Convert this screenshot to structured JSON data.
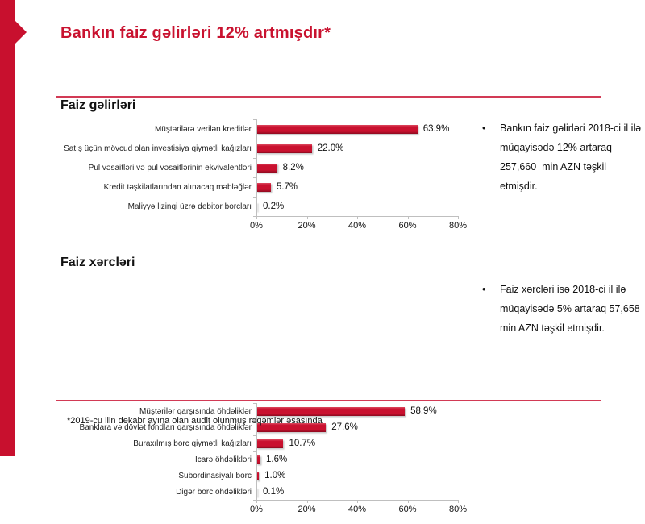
{
  "colors": {
    "accent": "#c8102e",
    "title": "#c9122f",
    "rule": "#d23a55",
    "axis": "#bfbfbf",
    "bar": "#c9112f"
  },
  "title": "Bankın faiz gəlirləri 12% artmışdır*",
  "bullet_char": "•",
  "chart_data": [
    {
      "type": "bar",
      "orientation": "horizontal",
      "title": "Faiz gəlirləri",
      "categories": [
        "Müştərilərə verilən kreditlər",
        "Satış üçün mövcud olan investisiya qiymətli kağızları",
        "Pul vəsaitləri və pul vəsaitlərinin ekvivalentləri",
        "Kredit təşkilatlarından alınacaq məbləğlər",
        "Maliyyə lizinqi üzrə debitor borcları"
      ],
      "values": [
        63.9,
        22.0,
        8.2,
        5.7,
        0.2
      ],
      "data_labels": [
        "63.9%",
        "22.0%",
        "8.2%",
        "5.7%",
        "0.2%"
      ],
      "xlim": [
        0,
        80
      ],
      "x_ticks": [
        "0%",
        "20%",
        "40%",
        "60%",
        "80%"
      ],
      "grid": false,
      "legend": false,
      "bar_color": "#c9112f"
    },
    {
      "type": "bar",
      "orientation": "horizontal",
      "title": "Faiz xərcləri",
      "categories": [
        "Müştərilər qarşısında öhdəliklər",
        "Banklara və dövlət fondları qarşısında öhdəliklər",
        "Buraxılmış borc qiymətli kağızları",
        "İcarə öhdəlikləri",
        "Subordinasiyalı borc",
        "Digər borc öhdəlikləri"
      ],
      "values": [
        58.9,
        27.6,
        10.7,
        1.6,
        1.0,
        0.1
      ],
      "data_labels": [
        "58.9%",
        "27.6%",
        "10.7%",
        "1.6%",
        "1.0%",
        "0.1%"
      ],
      "xlim": [
        0,
        80
      ],
      "x_ticks": [
        "0%",
        "20%",
        "40%",
        "60%",
        "80%"
      ],
      "grid": false,
      "legend": false,
      "bar_color": "#c9112f"
    }
  ],
  "notes": [
    {
      "text": "Bankın faiz gəlirləri 2018-ci il ilə müqayisədə 12% artaraq 257,660  min AZN təşkil etmişdir."
    },
    {
      "text": "Faiz xərcləri isə 2018-ci il ilə müqayisədə 5% artaraq 57,658 min AZN təşkil etmişdir."
    }
  ],
  "footnote": "*2019-cu ilin dekabr ayına olan audit olunmuş rəqəmlər əsasında"
}
